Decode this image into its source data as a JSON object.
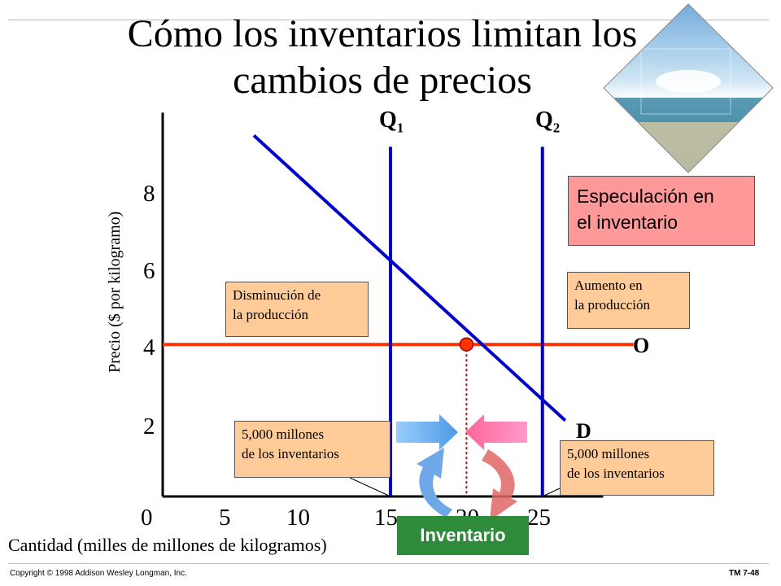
{
  "title_line1": "Cómo los inventarios limitan los",
  "title_line2": "cambios de precios",
  "chart_data": {
    "type": "line",
    "ylabel": "Precio ($ por kilogramo)",
    "xlabel": "Cantidad (milles de millones de kilogramos)",
    "x_ticks": [
      "0",
      "5",
      "10",
      "15",
      "20",
      "25"
    ],
    "y_ticks": [
      "2",
      "4",
      "6",
      "8"
    ],
    "xlim": [
      0,
      28
    ],
    "ylim": [
      0,
      10
    ],
    "series": [
      {
        "name": "O",
        "type": "horizontal",
        "color": "#ff3300",
        "x": [
          0,
          31
        ],
        "y": [
          4,
          4
        ]
      },
      {
        "name": "D",
        "type": "line",
        "color": "#0000cc",
        "x": [
          6,
          26.5
        ],
        "y": [
          9.5,
          2
        ]
      },
      {
        "name": "Q1",
        "type": "vertical",
        "color": "#0000cc",
        "x": [
          15,
          15
        ],
        "y": [
          0,
          9.2
        ]
      },
      {
        "name": "Q2",
        "type": "vertical",
        "color": "#0000cc",
        "x": [
          25,
          25
        ],
        "y": [
          0,
          9.2
        ]
      }
    ],
    "equilibrium_point": {
      "x": 20,
      "y": 4
    }
  },
  "labels": {
    "q1": "Q",
    "q1_sub": "1",
    "q2": "Q",
    "q2_sub": "2",
    "supply": "O",
    "demand": "D"
  },
  "boxes": {
    "spec_line1": "Especulación en",
    "spec_line2": "el inventario",
    "decrease_line1": "Disminución de",
    "decrease_line2": "la producción",
    "increase_line1": "Aumento en",
    "increase_line2": "la producción",
    "left_inv_line1": "5,000 millones",
    "left_inv_line2": "de los inventarios",
    "right_inv_line1": "5,000 millones",
    "right_inv_line2": "de los inventarios",
    "inventory": "Inventario"
  },
  "footer": {
    "copyright": "Copyright © 1998 Addison Wesley Longman, Inc.",
    "slide_id": "TM 7-48"
  },
  "colors": {
    "supply": "#ff3300",
    "demand": "#0000cc",
    "box_orange": "#ffcc99",
    "box_red": "#ff9999",
    "inventory_green": "#2e8b3a"
  }
}
